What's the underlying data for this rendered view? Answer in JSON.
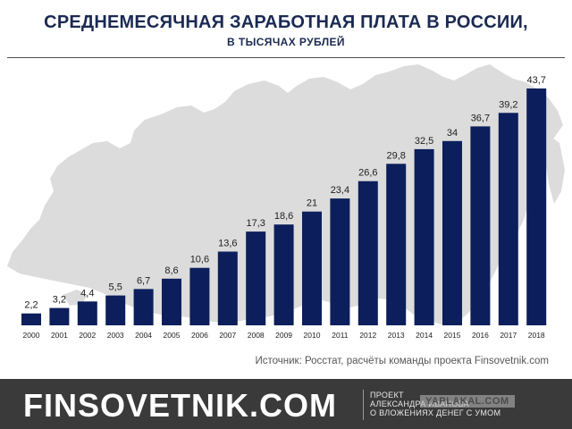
{
  "header": {
    "title": "СРЕДНЕМЕСЯЧНАЯ ЗАРАБОТНАЯ ПЛАТА В РОССИИ,",
    "subtitle": "В ТЫСЯЧАХ РУБЛЕЙ"
  },
  "source": "Источник: Росстат, расчёты команды проекта Finsovetnik.com",
  "footer": {
    "brand": "FINSOVETNIK.COM",
    "project_lines": [
      "ПРОЕКТ",
      "АЛЕКСАНДРА ИВАНОВА",
      "О ВЛОЖЕНИЯХ ДЕНЕГ С УМОМ"
    ],
    "watermark": "YAPLAKAL.COM"
  },
  "colors": {
    "bar": "#0c1f5c",
    "title": "#1a2a52",
    "map": "#dcdcdc",
    "footer": "#3a3a3a"
  },
  "chart_data": {
    "type": "bar",
    "title": "СРЕДНЕМЕСЯЧНАЯ ЗАРАБОТНАЯ ПЛАТА В РОССИИ,",
    "subtitle": "В ТЫСЯЧАХ РУБЛЕЙ",
    "categories": [
      "2000",
      "2001",
      "2002",
      "2003",
      "2004",
      "2005",
      "2006",
      "2007",
      "2008",
      "2009",
      "2010",
      "2011",
      "2012",
      "2013",
      "2014",
      "2015",
      "2016",
      "2017",
      "2018"
    ],
    "values": [
      2.2,
      3.2,
      4.4,
      5.5,
      6.7,
      8.6,
      10.6,
      13.6,
      17.3,
      18.6,
      21,
      23.4,
      26.6,
      29.8,
      32.5,
      34,
      36.7,
      39.2,
      43.7
    ],
    "value_labels": [
      "2,2",
      "3,2",
      "4,4",
      "5,5",
      "6,7",
      "8,6",
      "10,6",
      "13,6",
      "17,3",
      "18,6",
      "21",
      "23,4",
      "26,6",
      "29,8",
      "32,5",
      "34",
      "36,7",
      "39,2",
      "43,7"
    ],
    "ylim": [
      0,
      45
    ],
    "grid": false,
    "legend": "none"
  }
}
